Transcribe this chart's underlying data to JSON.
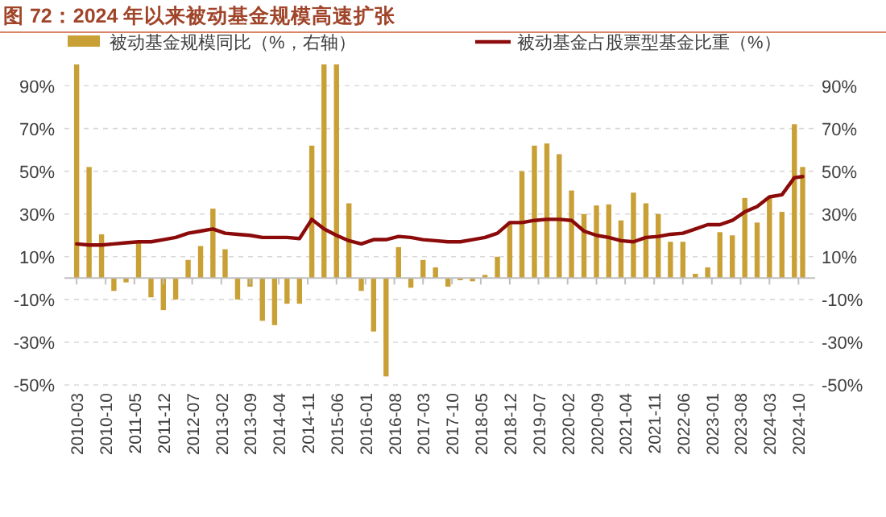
{
  "chart_data": {
    "type": "bar",
    "title": "图 72：2024 年以来被动基金规模高速扩张",
    "x": [
      "2010-03",
      "2010-06",
      "2010-09",
      "2010-12",
      "2011-03",
      "2011-06",
      "2011-09",
      "2011-12",
      "2012-03",
      "2012-06",
      "2012-09",
      "2012-12",
      "2013-03",
      "2013-06",
      "2013-09",
      "2013-12",
      "2014-03",
      "2014-06",
      "2014-09",
      "2014-12",
      "2015-03",
      "2015-06",
      "2015-09",
      "2015-12",
      "2016-03",
      "2016-06",
      "2016-09",
      "2016-12",
      "2017-03",
      "2017-06",
      "2017-09",
      "2017-12",
      "2018-03",
      "2018-06",
      "2018-09",
      "2018-12",
      "2019-03",
      "2019-06",
      "2019-09",
      "2019-12",
      "2020-03",
      "2020-06",
      "2020-09",
      "2020-12",
      "2021-03",
      "2021-06",
      "2021-09",
      "2021-12",
      "2022-03",
      "2022-06",
      "2022-09",
      "2022-12",
      "2023-03",
      "2023-06",
      "2023-09",
      "2023-12",
      "2024-03",
      "2024-06",
      "2024-09",
      "2024-11"
    ],
    "series": [
      {
        "name": "被动基金规模同比（%，右轴）",
        "axis": "y2",
        "color": "#c9a035",
        "values": [
          100,
          52,
          20.5,
          -6,
          -2,
          17,
          -9,
          -15,
          -10,
          8.5,
          15,
          32.5,
          13.5,
          -10,
          -4,
          -20,
          -22,
          -12,
          -12,
          62,
          100,
          100,
          35,
          -6,
          -25,
          -46,
          14.5,
          -4.5,
          8.5,
          5,
          -4,
          -1,
          -1.5,
          1.5,
          10,
          26,
          50,
          62,
          63,
          58,
          41,
          30,
          34,
          34.5,
          27,
          40,
          35,
          30,
          17,
          17,
          2,
          5,
          21.5,
          20,
          37.5,
          26,
          38,
          31,
          72,
          52
        ]
      },
      {
        "name": "被动基金占股票型基金比重（%）",
        "type": "line",
        "color": "#8b0a0a",
        "values": [
          16,
          15.5,
          15.5,
          16,
          16.5,
          17,
          17,
          18,
          19,
          21,
          22,
          23,
          21,
          20.5,
          20,
          19,
          19,
          19,
          18.5,
          27.5,
          23,
          20,
          17.5,
          16,
          18,
          18,
          19.5,
          19,
          18,
          17.5,
          17,
          17,
          18,
          19,
          21,
          26,
          26,
          27,
          27.5,
          27.5,
          27,
          22,
          20,
          19,
          17.5,
          17,
          19,
          19.5,
          20.5,
          21,
          23,
          25,
          25,
          27,
          31,
          33.5,
          38,
          39,
          47,
          47.5
        ]
      }
    ],
    "xlim": [
      "2009-12",
      "2025-02"
    ],
    "xticks": [
      "2010-03",
      "2010-10",
      "2011-05",
      "2011-12",
      "2012-07",
      "2013-02",
      "2013-09",
      "2014-04",
      "2014-11",
      "2015-06",
      "2016-01",
      "2016-08",
      "2017-03",
      "2017-10",
      "2018-05",
      "2018-12",
      "2019-07",
      "2020-02",
      "2020-09",
      "2021-04",
      "2021-11",
      "2022-06",
      "2023-01",
      "2023-08",
      "2024-03",
      "2024-10"
    ],
    "ylim": [
      -50,
      100
    ],
    "yticks": [
      {
        "value": -50,
        "label": "-50%"
      },
      {
        "value": -30,
        "label": "-30%"
      },
      {
        "value": -10,
        "label": "-10%"
      },
      {
        "value": 10,
        "label": "10%"
      },
      {
        "value": 30,
        "label": "30%"
      },
      {
        "value": 50,
        "label": "50%"
      },
      {
        "value": 70,
        "label": "70%"
      },
      {
        "value": 90,
        "label": "90%"
      }
    ],
    "y2lim": [
      -50,
      100
    ],
    "y2ticks": [
      {
        "value": -50,
        "label": "-50%"
      },
      {
        "value": -30,
        "label": "-30%"
      },
      {
        "value": -10,
        "label": "-10%"
      },
      {
        "value": 10,
        "label": "10%"
      },
      {
        "value": 30,
        "label": "30%"
      },
      {
        "value": 50,
        "label": "50%"
      },
      {
        "value": 70,
        "label": "70%"
      },
      {
        "value": 90,
        "label": "90%"
      }
    ],
    "grid": "y",
    "legend": "top",
    "marker": "none",
    "line_style": "solid"
  }
}
